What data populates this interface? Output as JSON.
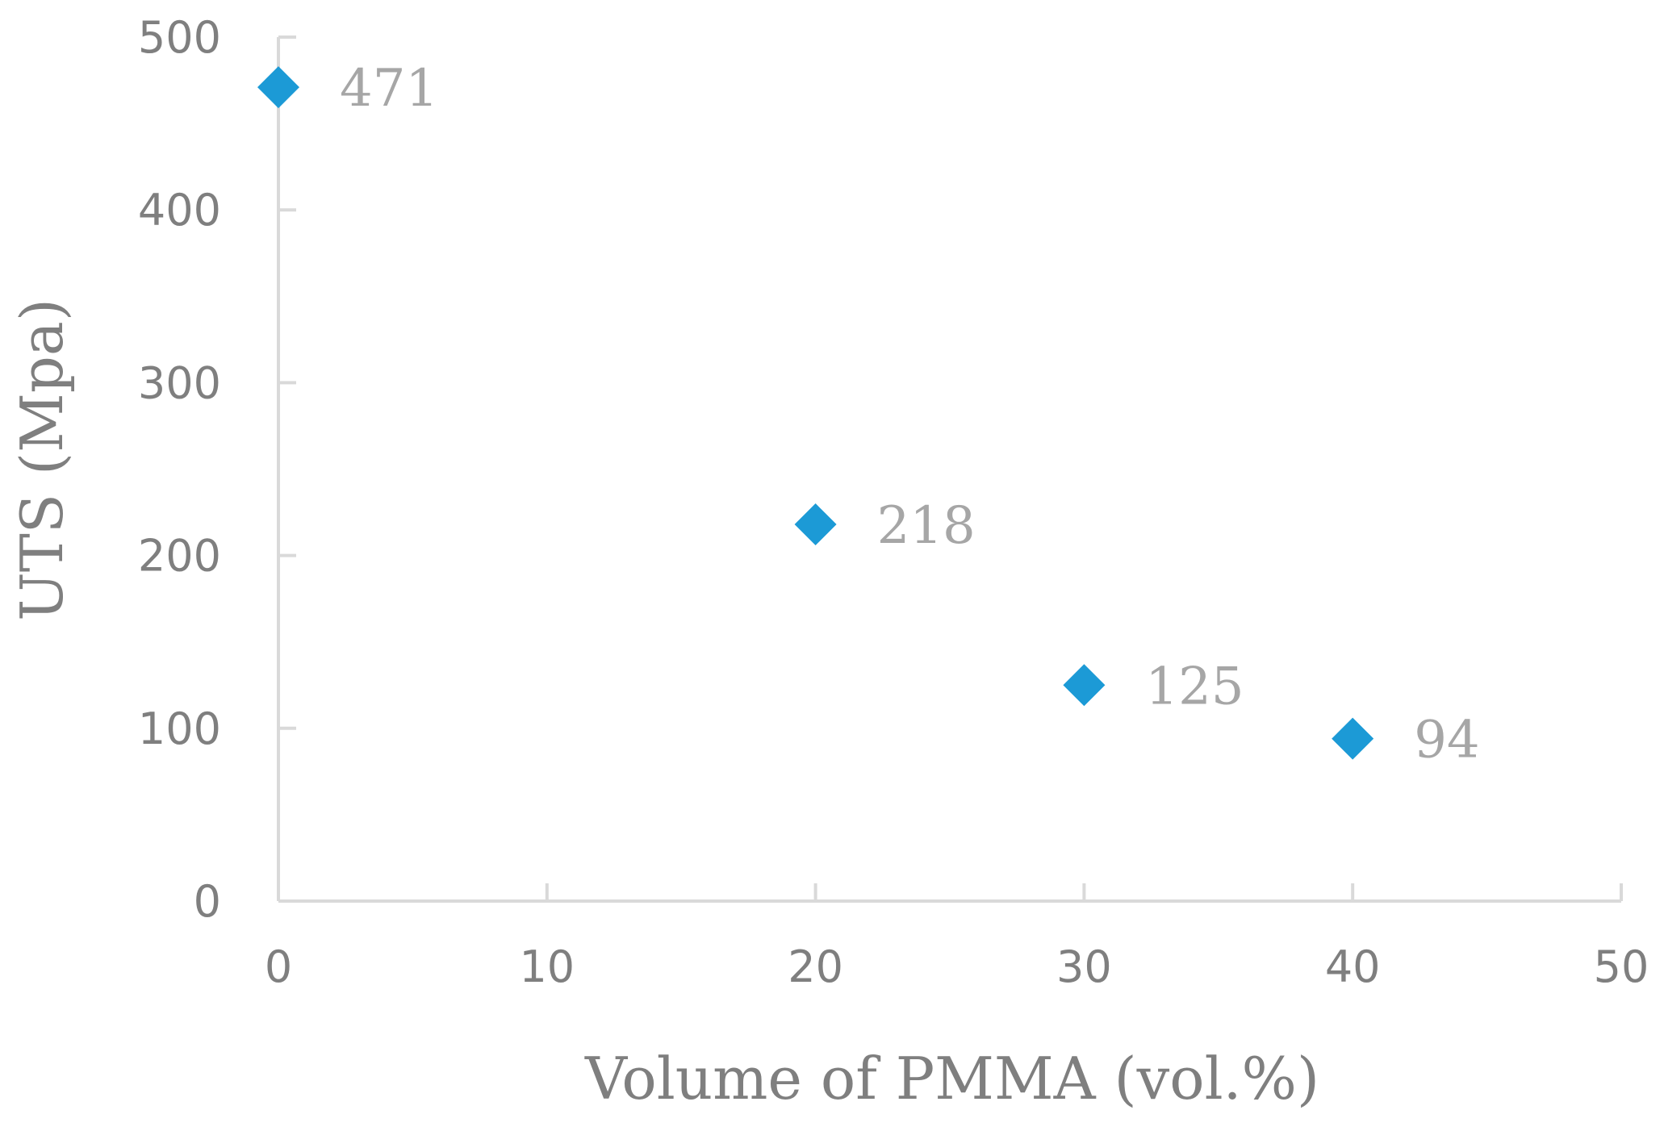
{
  "chart_data": {
    "type": "scatter",
    "title": "",
    "xlabel": "Volume of PMMA (vol.%)",
    "ylabel": "UTS (Mpa)",
    "xlim": [
      0,
      50
    ],
    "ylim": [
      0,
      500
    ],
    "xticks": [
      0,
      10,
      20,
      30,
      40,
      50
    ],
    "yticks": [
      0,
      100,
      200,
      300,
      400,
      500
    ],
    "grid": false,
    "marker": "diamond",
    "series": [
      {
        "name": "UTS",
        "color": "#1c9ad6",
        "points": [
          {
            "x": 0,
            "y": 471,
            "label": "471"
          },
          {
            "x": 20,
            "y": 218,
            "label": "218"
          },
          {
            "x": 30,
            "y": 125,
            "label": "125"
          },
          {
            "x": 40,
            "y": 94,
            "label": "94"
          }
        ]
      }
    ]
  }
}
